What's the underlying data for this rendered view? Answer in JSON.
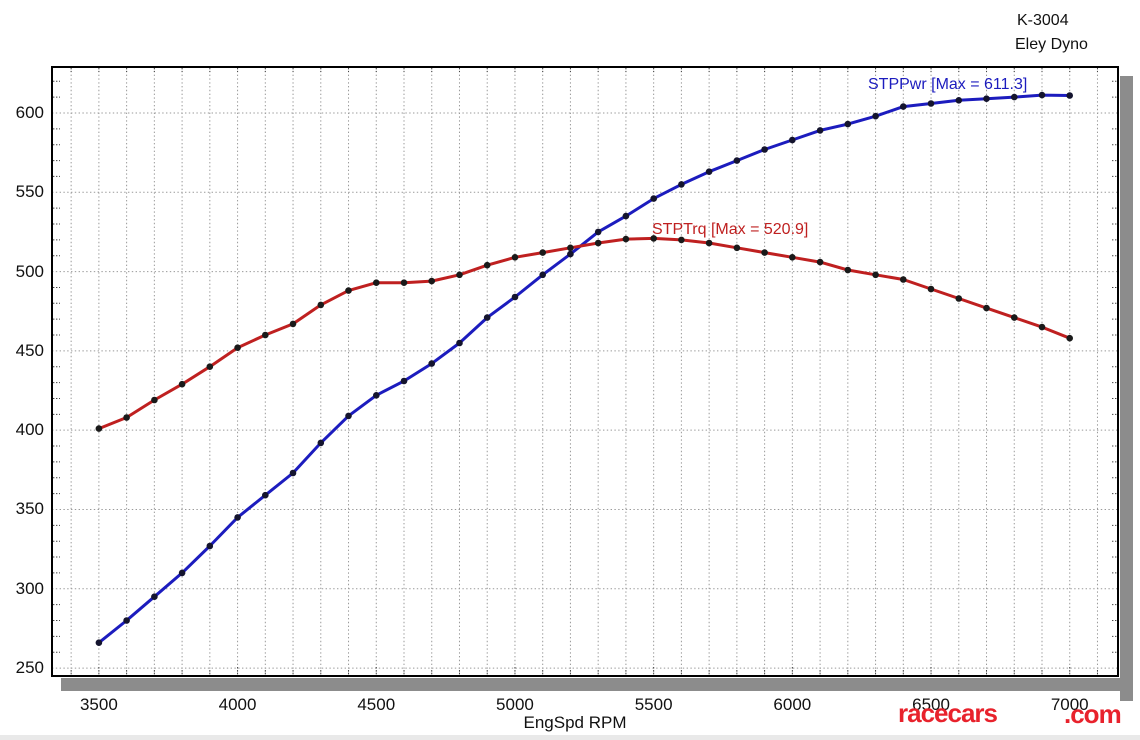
{
  "header": {
    "ref_code": "K-3004",
    "dyno_name": "Eley Dyno"
  },
  "watermark": {
    "part1": "racecars",
    "part2": ".com",
    "color": "#e8222c"
  },
  "chart_data": {
    "type": "line",
    "title": "",
    "xlabel": "EngSpd RPM",
    "ylabel": "",
    "x": [
      3500,
      3600,
      3700,
      3800,
      3900,
      4000,
      4100,
      4200,
      4300,
      4400,
      4500,
      4600,
      4700,
      4800,
      4900,
      5000,
      5100,
      5200,
      5300,
      5400,
      5500,
      5600,
      5700,
      5800,
      5900,
      6000,
      6100,
      6200,
      6300,
      6400,
      6500,
      6600,
      6700,
      6800,
      6900,
      7000
    ],
    "series": [
      {
        "name": "STPPwr",
        "label": "STPPwr [Max = 611.3]",
        "max": 611.3,
        "color": "#1c1cbe",
        "marker_color": "#14142e",
        "values": [
          266,
          280,
          295,
          310,
          327,
          345,
          359,
          373,
          392,
          409,
          422,
          431,
          442,
          455,
          471,
          484,
          498,
          511,
          525,
          535,
          546,
          555,
          563,
          570,
          577,
          583,
          589,
          593,
          598,
          604,
          606,
          608,
          609,
          610,
          611.3,
          611
        ]
      },
      {
        "name": "STPTrq",
        "label": "STPTrq [Max = 520.9]",
        "max": 520.9,
        "color": "#bf2020",
        "marker_color": "#1a1a1a",
        "values": [
          401,
          408,
          419,
          429,
          440,
          452,
          460,
          467,
          479,
          488,
          493,
          493,
          494,
          498,
          504,
          509,
          512,
          515,
          518,
          520.5,
          520.9,
          520,
          518,
          515,
          512,
          509,
          506,
          501,
          498,
          495,
          489,
          483,
          477,
          471,
          465,
          458
        ]
      }
    ],
    "x_ticks": [
      3500,
      4000,
      4500,
      5000,
      5500,
      6000,
      6500,
      7000
    ],
    "y_ticks": [
      250,
      300,
      350,
      400,
      450,
      500,
      550,
      600
    ],
    "x_minor_step": 100,
    "y_minor_step": 10,
    "xlim": [
      3331,
      7174
    ],
    "ylim": [
      245,
      629
    ],
    "grid": {
      "on": true,
      "color": "#999999",
      "style": "dotted"
    },
    "frame_color": "#000000",
    "shadow_color": "#8c8c8c",
    "legend_position": "inline-annotations"
  }
}
